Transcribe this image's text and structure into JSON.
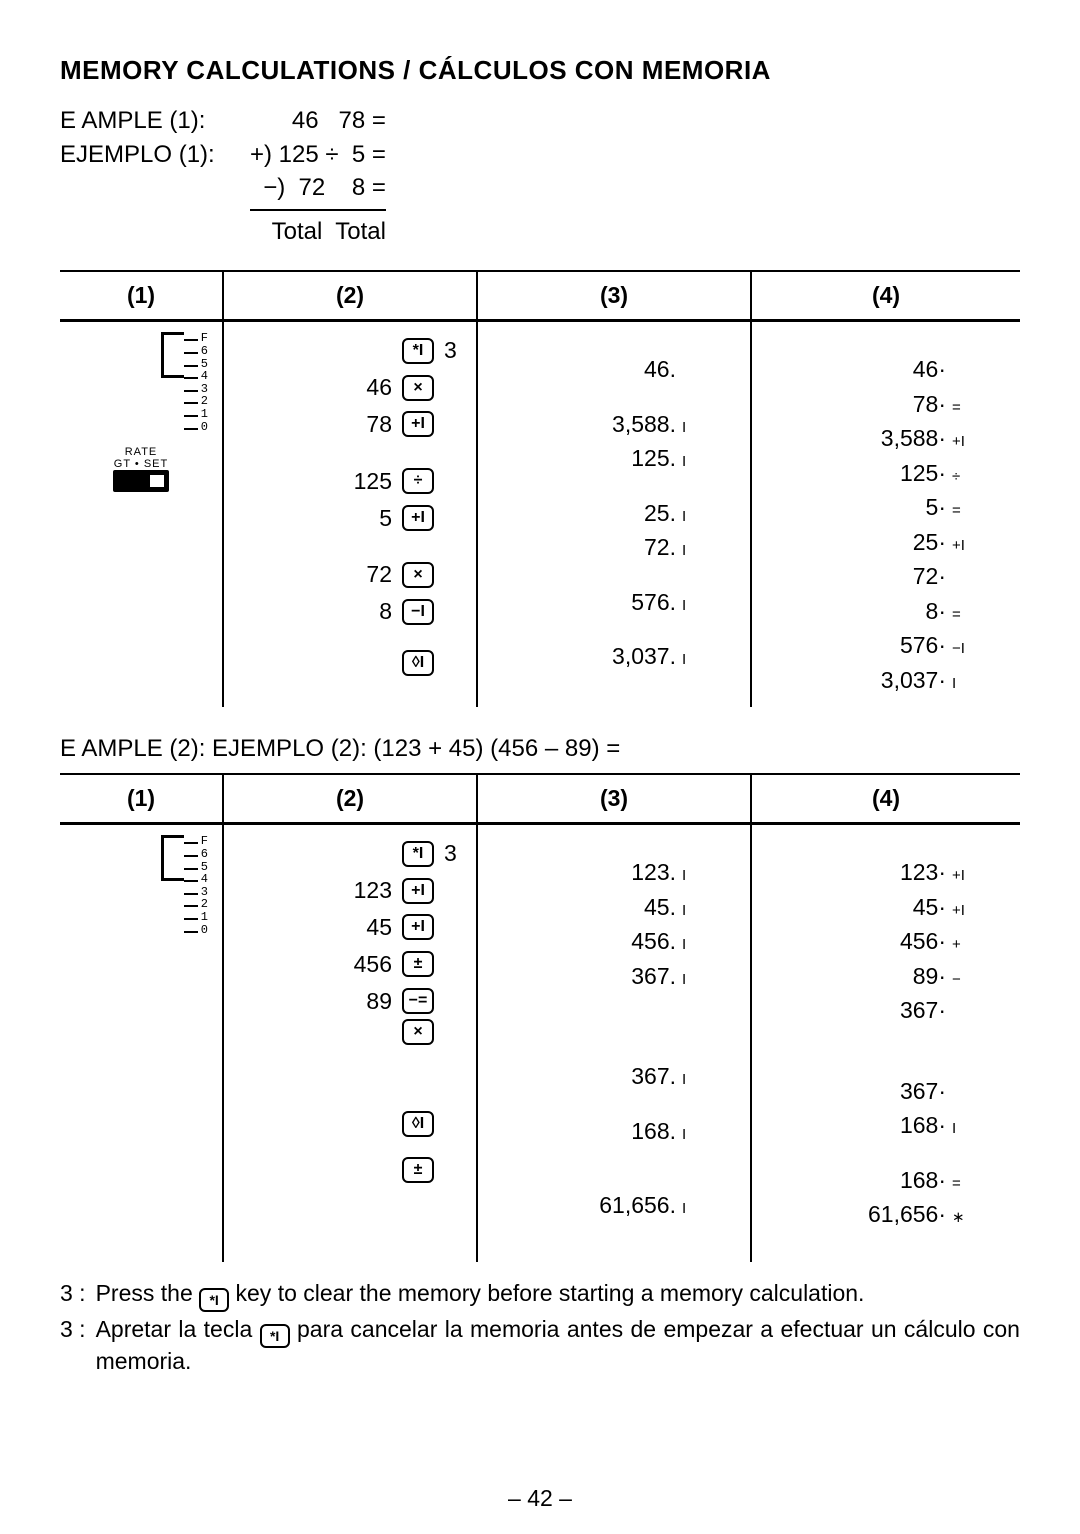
{
  "title": "MEMORY CALCULATIONS / CÁLCULOS CON MEMORIA",
  "example1": {
    "label_en": "E  AMPLE (1):",
    "label_es": "EJEMPLO (1):",
    "lines": [
      "     46   78 =",
      "+) 125 ÷  5 =",
      "−)  72    8 ="
    ],
    "total": "Total  Total"
  },
  "headers": [
    "(1)",
    "(2)",
    "(3)",
    "(4)"
  ],
  "table1": {
    "selector_labels": [
      "F",
      "6",
      "5",
      "4",
      "3",
      "2",
      "1",
      "0"
    ],
    "switch_label": "GT • SET",
    "switch_top": "RATE",
    "col2": [
      {
        "num": "",
        "key": "*I",
        "after": "3"
      },
      {
        "num": "46",
        "key": "×"
      },
      {
        "num": "78",
        "key": "+I"
      },
      {
        "spacer": true
      },
      {
        "num": "125",
        "key": "÷"
      },
      {
        "num": "5",
        "key": "+I"
      },
      {
        "spacer": true
      },
      {
        "num": "72",
        "key": "×"
      },
      {
        "num": "8",
        "key": "−I"
      },
      {
        "spacer": true
      },
      {
        "num": "",
        "key": "◊I"
      },
      {
        "spacer": true
      }
    ],
    "col3": [
      {
        "spacer": true
      },
      {
        "val": "46.",
        "mark": ""
      },
      {
        "spacer": true
      },
      {
        "val": "3,588.",
        "mark": "I"
      },
      {
        "val": "125.",
        "mark": "I"
      },
      {
        "spacer": true
      },
      {
        "val": "25.",
        "mark": "I"
      },
      {
        "val": "72.",
        "mark": "I"
      },
      {
        "spacer": true
      },
      {
        "val": "576.",
        "mark": "I"
      },
      {
        "spacer": true
      },
      {
        "val": "3,037.",
        "mark": "I"
      }
    ],
    "col4": [
      {
        "spacer": true
      },
      {
        "val": "46·",
        "sym": ""
      },
      {
        "val": "78·",
        "sym": "="
      },
      {
        "val": "3,588·",
        "sym": "+I"
      },
      {
        "val": "125·",
        "sym": "÷"
      },
      {
        "val": "5·",
        "sym": "="
      },
      {
        "val": "25·",
        "sym": "+I"
      },
      {
        "val": "72·",
        "sym": ""
      },
      {
        "val": "8·",
        "sym": "="
      },
      {
        "val": "576·",
        "sym": "−I"
      },
      {
        "val": "3,037·",
        "sym": " I"
      }
    ]
  },
  "example2_line": "E  AMPLE (2):  EJEMPLO (2):     (123 + 45)   (456 – 89) =",
  "table2": {
    "selector_labels": [
      "F",
      "6",
      "5",
      "4",
      "3",
      "2",
      "1",
      "0"
    ],
    "col2": [
      {
        "num": "",
        "key": "*I",
        "after": "3"
      },
      {
        "num": "123",
        "key": "+I"
      },
      {
        "num": "45",
        "key": "+I"
      },
      {
        "num": "456",
        "key": "±"
      },
      {
        "num": "89",
        "key": "−="
      },
      {
        "num": "",
        "key": "×"
      },
      {
        "bigspacer": true
      },
      {
        "spacer": true
      },
      {
        "num": "",
        "key": "◊I"
      },
      {
        "spacer": true
      },
      {
        "num": "",
        "key": "±"
      },
      {
        "spacer": true
      },
      {
        "spacer": true
      }
    ],
    "col3": [
      {
        "spacer": true
      },
      {
        "val": "123.",
        "mark": "I"
      },
      {
        "val": "45.",
        "mark": "I"
      },
      {
        "val": "456.",
        "mark": "I"
      },
      {
        "val": "367.",
        "mark": "I"
      },
      {
        "spacer": true
      },
      {
        "bigspacer": true
      },
      {
        "val": "367.",
        "mark": "I"
      },
      {
        "spacer": true
      },
      {
        "val": "168.",
        "mark": "I"
      },
      {
        "spacer": true
      },
      {
        "spacer": true
      },
      {
        "val": "61,656.",
        "mark": "I"
      }
    ],
    "col4": [
      {
        "spacer": true
      },
      {
        "val": "123·",
        "sym": "+I"
      },
      {
        "val": "45·",
        "sym": "+I"
      },
      {
        "val": "456·",
        "sym": "+"
      },
      {
        "val": "89·",
        "sym": "−"
      },
      {
        "val": "367·",
        "sym": ""
      },
      {
        "bigspacer": true
      },
      {
        "val": "367·",
        "sym": ""
      },
      {
        "val": "168·",
        "sym": " I"
      },
      {
        "spacer": true
      },
      {
        "val": "168·",
        "sym": "="
      },
      {
        "val": "61,656·",
        "sym": "∗"
      },
      {
        "spacer": true
      }
    ]
  },
  "notes": {
    "en_lead": "3 :",
    "en": "Press the  *I  key to clear the memory before starting a memory calculation.",
    "es_lead": "3 :",
    "es": "Apretar la tecla  *I  para cancelar la memoria antes de empezar a efectuar un cálculo con memoria."
  },
  "pageno": "– 42 –"
}
